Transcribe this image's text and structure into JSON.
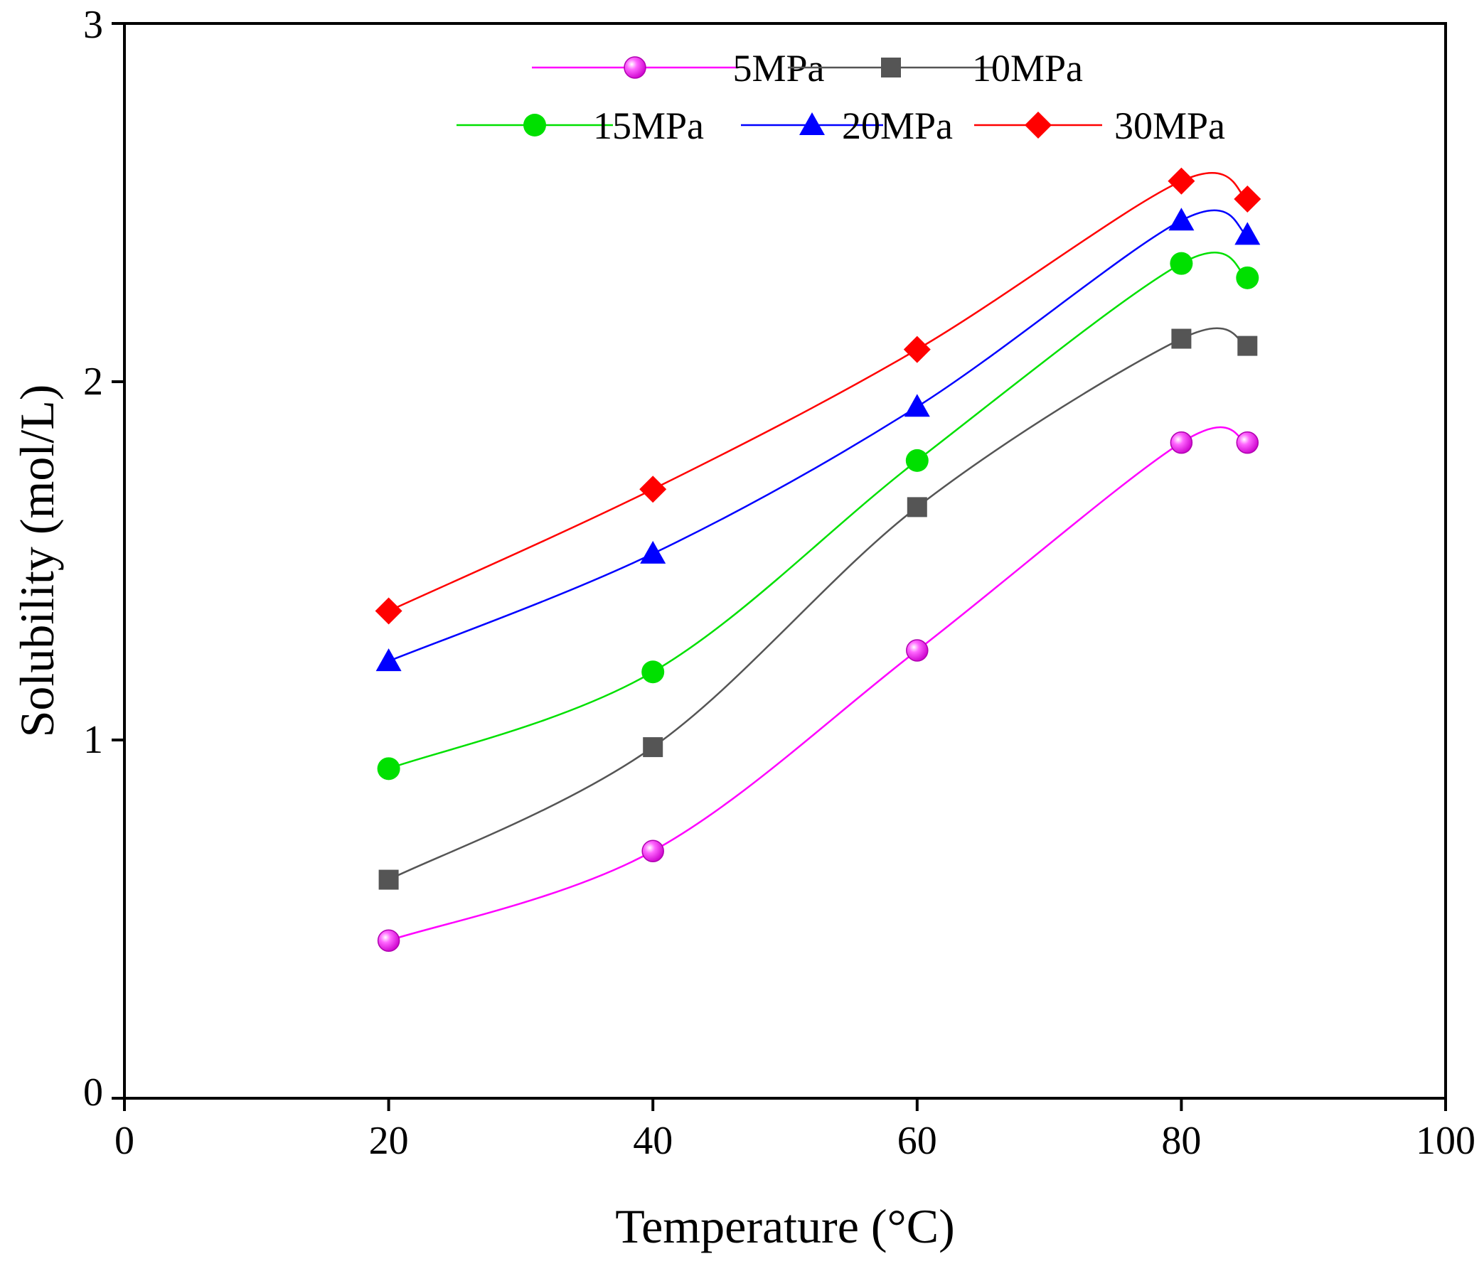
{
  "chart_data": {
    "type": "line",
    "title": "",
    "xlabel": "Temperature (°C)",
    "ylabel": "Solubility (mol/L)",
    "xlim": [
      0,
      100
    ],
    "ylim": [
      0,
      3
    ],
    "xticks": [
      "0",
      "20",
      "40",
      "60",
      "80",
      "100"
    ],
    "yticks": [
      "0",
      "1",
      "2",
      "3"
    ],
    "x": [
      20,
      40,
      60,
      80,
      85
    ],
    "grid": false,
    "legend_position": "top",
    "series": [
      {
        "name": "5MPa",
        "marker": "sphere",
        "color": "#ff00ff",
        "values": [
          0.44,
          0.69,
          1.25,
          1.83,
          1.83
        ]
      },
      {
        "name": "10MPa",
        "marker": "square",
        "color": "#555555",
        "values": [
          0.61,
          0.98,
          1.65,
          2.12,
          2.1
        ]
      },
      {
        "name": "15MPa",
        "marker": "circle",
        "color": "#00e000",
        "values": [
          0.92,
          1.19,
          1.78,
          2.33,
          2.29
        ]
      },
      {
        "name": "20MPa",
        "marker": "triangle",
        "color": "#0000ff",
        "values": [
          1.22,
          1.52,
          1.93,
          2.45,
          2.41
        ]
      },
      {
        "name": "30MPa",
        "marker": "diamond",
        "color": "#ff0000",
        "values": [
          1.36,
          1.7,
          2.09,
          2.56,
          2.51
        ]
      }
    ]
  }
}
